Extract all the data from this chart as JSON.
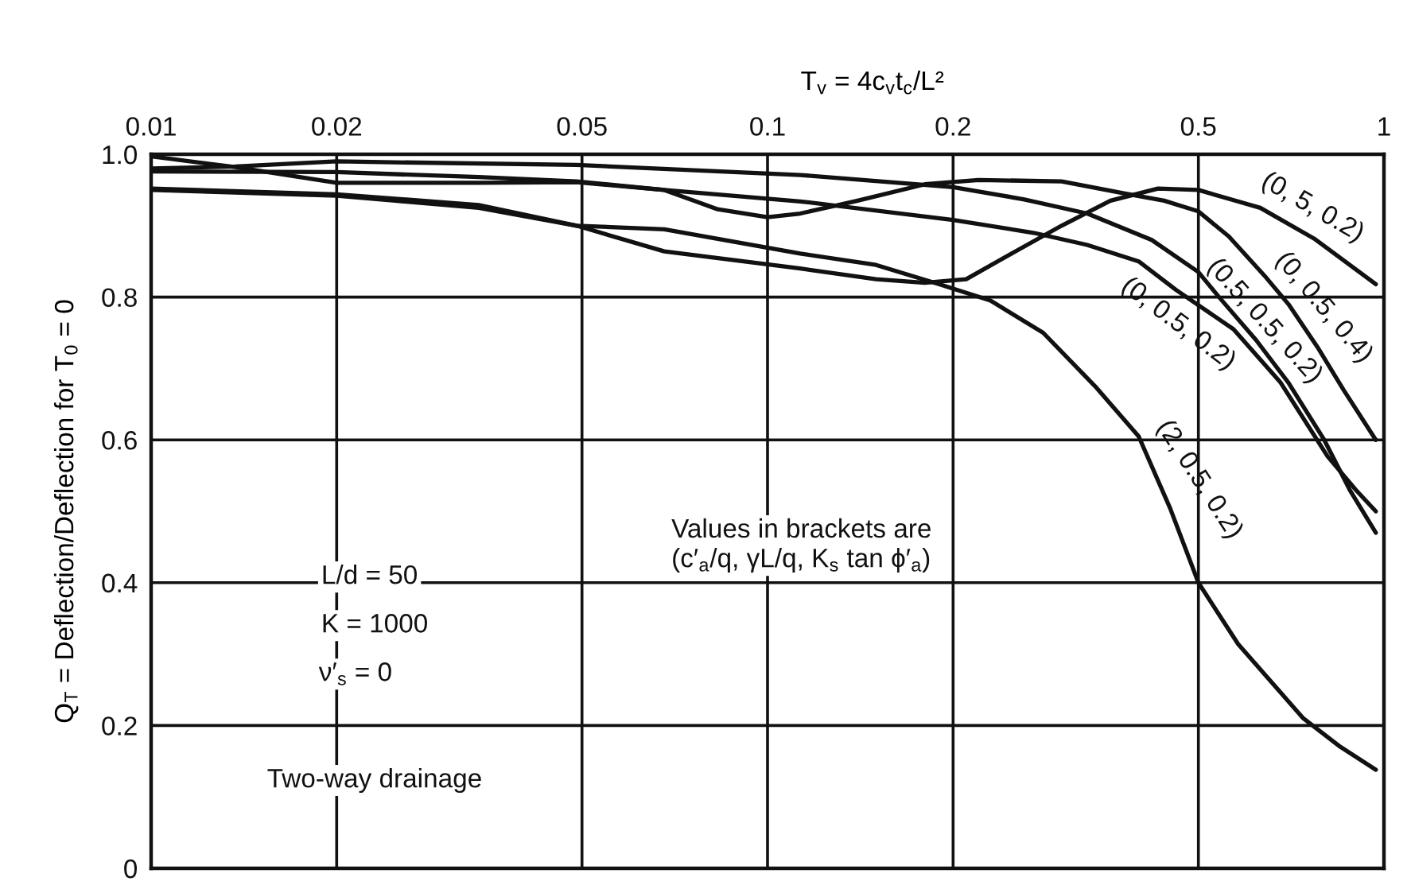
{
  "chart_data": {
    "type": "line",
    "xlabel": "T$_{v}$ = 4c$_{v}$t$_{c}$/L²",
    "ylabel": "Q$_{T}$ = Deflection/Deflection for T$_{0}$ = 0",
    "log": "x",
    "xlim": [
      0.01,
      1
    ],
    "ylim": [
      0,
      1
    ],
    "xticks": [
      0.01,
      0.02,
      0.05,
      0.1,
      0.2,
      0.5,
      1
    ],
    "yticks": [
      0,
      0.2,
      0.4,
      0.6,
      0.8,
      {
        "value": 1,
        "label": "1.0"
      }
    ],
    "grid": true,
    "line_style": "solid",
    "series": [
      {
        "color": "#111111",
        "x": [
          0.01,
          0.02,
          0.034,
          0.049,
          0.068,
          0.113,
          0.15,
          0.18,
          0.21,
          0.25,
          0.3,
          0.36,
          0.43,
          0.5,
          0.63,
          0.77,
          0.97
        ],
        "values": [
          0.95,
          0.942,
          0.925,
          0.9,
          0.864,
          0.84,
          0.825,
          0.82,
          0.825,
          0.862,
          0.9,
          0.935,
          0.952,
          0.95,
          0.925,
          0.882,
          0.818
        ]
      },
      {
        "color": "#111111",
        "x": [
          0.01,
          0.0137,
          0.02,
          0.034,
          0.049,
          0.068,
          0.083,
          0.1,
          0.113,
          0.14,
          0.18,
          0.22,
          0.3,
          0.38,
          0.44,
          0.5,
          0.56,
          0.64,
          0.7,
          0.78,
          0.86,
          0.97
        ],
        "values": [
          0.997,
          0.982,
          0.96,
          0.96,
          0.961,
          0.95,
          0.923,
          0.912,
          0.917,
          0.935,
          0.958,
          0.964,
          0.962,
          0.945,
          0.935,
          0.92,
          0.885,
          0.83,
          0.79,
          0.73,
          0.67,
          0.6
        ]
      },
      {
        "color": "#111111",
        "x": [
          0.01,
          0.0137,
          0.02,
          0.049,
          0.113,
          0.2,
          0.26,
          0.33,
          0.42,
          0.5,
          0.54,
          0.62,
          0.7,
          0.8,
          0.88,
          0.97
        ],
        "values": [
          0.98,
          0.983,
          0.99,
          0.985,
          0.971,
          0.954,
          0.937,
          0.917,
          0.88,
          0.835,
          0.8,
          0.74,
          0.68,
          0.6,
          0.53,
          0.47
        ]
      },
      {
        "color": "#111111",
        "x": [
          0.01,
          0.02,
          0.034,
          0.049,
          0.068,
          0.113,
          0.2,
          0.27,
          0.33,
          0.4,
          0.46,
          0.57,
          0.68,
          0.81,
          0.9,
          0.97
        ],
        "values": [
          0.976,
          0.975,
          0.968,
          0.962,
          0.95,
          0.934,
          0.908,
          0.89,
          0.873,
          0.85,
          0.81,
          0.755,
          0.68,
          0.577,
          0.53,
          0.5
        ]
      },
      {
        "color": "#111111",
        "x": [
          0.01,
          0.02,
          0.034,
          0.049,
          0.068,
          0.113,
          0.15,
          0.19,
          0.23,
          0.28,
          0.34,
          0.4,
          0.45,
          0.5,
          0.58,
          0.74,
          0.85,
          0.97
        ],
        "values": [
          0.952,
          0.944,
          0.929,
          0.9,
          0.895,
          0.861,
          0.845,
          0.818,
          0.795,
          0.75,
          0.675,
          0.605,
          0.504,
          0.4,
          0.314,
          0.21,
          0.17,
          0.138
        ]
      }
    ],
    "annotations": [
      "L/d = 50",
      "K = 1000",
      "ν′$_{s}$ = 0",
      "Two-way drainage",
      "Values in brackets are\n(c′$_{a}$/q, γL/q, K$_{s}$ tan ϕ′$_{a}$)",
      "(0, 5, 0.2)",
      "(0, 0.5, 0.4)",
      "(0.5, 0.5, 0.2)",
      "(0, 0.5, 0.2)",
      "(2, 0.5, 0.2)"
    ]
  }
}
